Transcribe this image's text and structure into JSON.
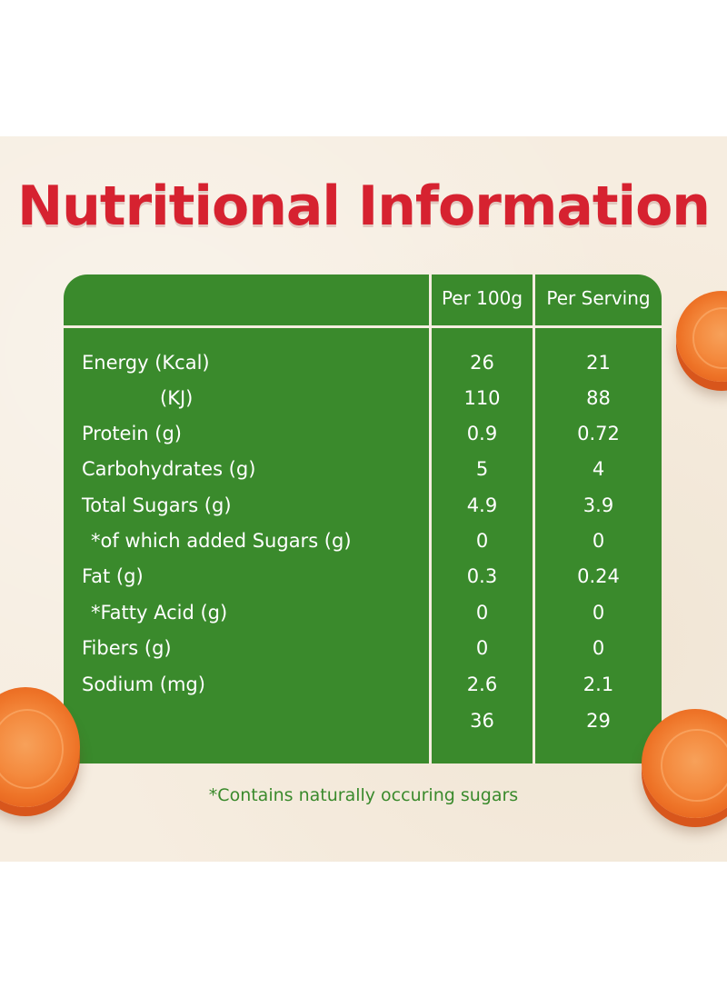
{
  "title": "Nutritional Information",
  "columns": {
    "per_100g": "Per 100g",
    "per_serving": "Per Serving"
  },
  "rows": [
    {
      "label": "Energy (Kcal)",
      "per_100g": "26",
      "per_serving": "21"
    },
    {
      "label": "(KJ)",
      "per_100g": "110",
      "per_serving": "88"
    },
    {
      "label": "Protein (g)",
      "per_100g": "0.9",
      "per_serving": "0.72"
    },
    {
      "label": "Carbohydrates (g)",
      "per_100g": "5",
      "per_serving": "4"
    },
    {
      "label": "Total Sugars (g)",
      "per_100g": "4.9",
      "per_serving": "3.9"
    },
    {
      "label": "*of which added Sugars (g)",
      "per_100g": "0",
      "per_serving": "0"
    },
    {
      "label": "Fat (g)",
      "per_100g": "0.3",
      "per_serving": "0.24"
    },
    {
      "label": "*Fatty Acid (g)",
      "per_100g": "0",
      "per_serving": "0"
    },
    {
      "label": "Fibers (g)",
      "per_100g": "0",
      "per_serving": "0"
    },
    {
      "label": "Sodium (mg)",
      "per_100g": "2.6",
      "per_serving": "2.1"
    },
    {
      "label": "",
      "per_100g": "36",
      "per_serving": "29"
    }
  ],
  "footnote": "*Contains naturally occuring sugars",
  "colors": {
    "title": "#d62230",
    "table_green": "#3a8a2c",
    "background": "#f6ede0",
    "carrot": "#ee7428"
  }
}
